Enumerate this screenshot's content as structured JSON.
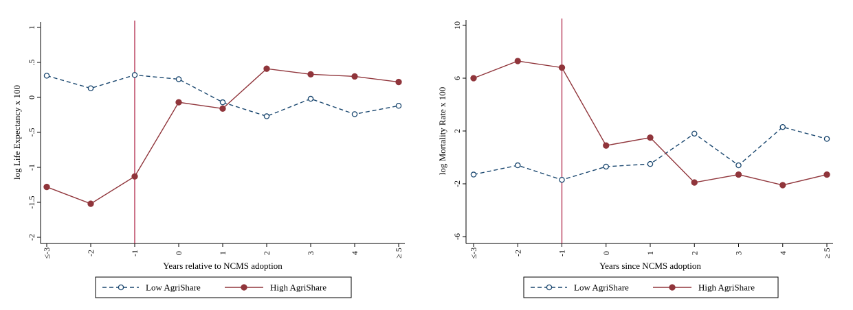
{
  "colors": {
    "low": "#1a476f",
    "high": "#90353b",
    "event_line": "#b0284a",
    "axis": "#000000"
  },
  "chart_data": [
    {
      "type": "line",
      "xlabel": "Years relative to NCMS adoption",
      "ylabel": "log Life Expectancy x 100",
      "categories": [
        "≤-3",
        "-2",
        "-1",
        "0",
        "1",
        "2",
        "3",
        "4",
        "≥ 5"
      ],
      "ylim": [
        -2,
        1
      ],
      "yticks": [
        -2,
        -1.5,
        -1,
        -0.5,
        0,
        0.5,
        1
      ],
      "ytick_labels": [
        "-2",
        "-1.5",
        "-1",
        "-.5",
        "0",
        ".5",
        "1"
      ],
      "event_line_at": "-1",
      "series": [
        {
          "name": "Low AgriShare",
          "style": "dashed-hollow",
          "values": [
            0.31,
            0.13,
            0.32,
            0.26,
            -0.07,
            -0.27,
            -0.02,
            -0.24,
            -0.12
          ]
        },
        {
          "name": "High AgriShare",
          "style": "solid-filled",
          "values": [
            -1.28,
            -1.52,
            -1.13,
            -0.07,
            -0.16,
            0.41,
            0.33,
            0.3,
            0.22
          ]
        }
      ],
      "legend": [
        "Low AgriShare",
        "High AgriShare"
      ],
      "legend_position": "bottom"
    },
    {
      "type": "line",
      "xlabel": "Years since NCMS adoption",
      "ylabel": "log Mortality Rate x 100",
      "categories": [
        "≤-3",
        "-2",
        "-1",
        "0",
        "1",
        "2",
        "3",
        "4",
        "≥ 5"
      ],
      "ylim": [
        -6,
        10
      ],
      "yticks": [
        -6,
        -2,
        2,
        6,
        10
      ],
      "ytick_labels": [
        "-6",
        "-2",
        "2",
        "6",
        "10"
      ],
      "event_line_at": "-1",
      "series": [
        {
          "name": "Low AgriShare",
          "style": "dashed-hollow",
          "values": [
            -1.3,
            -0.6,
            -1.7,
            -0.7,
            -0.5,
            1.8,
            -0.6,
            2.3,
            1.4
          ]
        },
        {
          "name": "High AgriShare",
          "style": "solid-filled",
          "values": [
            6.0,
            7.3,
            6.8,
            0.9,
            1.5,
            -1.9,
            -1.3,
            -2.1,
            -1.3
          ]
        }
      ],
      "legend": [
        "Low AgriShare",
        "High AgriShare"
      ],
      "legend_position": "bottom"
    }
  ]
}
